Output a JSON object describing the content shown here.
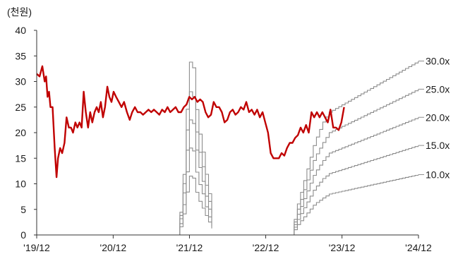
{
  "chart_data": {
    "type": "line",
    "unit_label": "(천원)",
    "ylim": [
      0,
      40
    ],
    "y_ticks": [
      0,
      5,
      10,
      15,
      20,
      25,
      30,
      35,
      40
    ],
    "x_range": [
      "2019-12",
      "2024-12"
    ],
    "x_ticks": [
      {
        "date": "2019-12",
        "label": "'19/12"
      },
      {
        "date": "2020-12",
        "label": "'20/12"
      },
      {
        "date": "2021-12",
        "label": "'21/12"
      },
      {
        "date": "2022-12",
        "label": "'22/12"
      },
      {
        "date": "2023-12",
        "label": "'23/12"
      },
      {
        "date": "2024-12",
        "label": "'24/12"
      }
    ],
    "grid": false,
    "colors": {
      "price": "#c00000",
      "band": "#8c8c8c",
      "axis": "#333333"
    },
    "price": {
      "color": "#c00000",
      "points": [
        [
          "2019-12-01",
          31.5
        ],
        [
          "2019-12-15",
          31
        ],
        [
          "2019-12-28",
          33
        ],
        [
          "2020-01-08",
          30
        ],
        [
          "2020-01-15",
          31
        ],
        [
          "2020-01-22",
          27
        ],
        [
          "2020-01-29",
          28
        ],
        [
          "2020-02-05",
          25
        ],
        [
          "2020-02-15",
          25
        ],
        [
          "2020-02-25",
          17
        ],
        [
          "2020-03-05",
          11.3
        ],
        [
          "2020-03-12",
          15
        ],
        [
          "2020-03-22",
          17
        ],
        [
          "2020-04-01",
          16
        ],
        [
          "2020-04-12",
          18
        ],
        [
          "2020-04-22",
          23
        ],
        [
          "2020-05-03",
          21
        ],
        [
          "2020-05-13",
          21
        ],
        [
          "2020-05-23",
          20
        ],
        [
          "2020-06-03",
          22
        ],
        [
          "2020-06-13",
          21
        ],
        [
          "2020-06-23",
          22
        ],
        [
          "2020-07-03",
          21
        ],
        [
          "2020-07-13",
          28
        ],
        [
          "2020-07-23",
          24
        ],
        [
          "2020-08-03",
          21
        ],
        [
          "2020-08-13",
          24
        ],
        [
          "2020-08-23",
          22
        ],
        [
          "2020-09-03",
          24
        ],
        [
          "2020-09-13",
          25
        ],
        [
          "2020-09-23",
          24
        ],
        [
          "2020-10-03",
          26
        ],
        [
          "2020-10-13",
          23
        ],
        [
          "2020-10-23",
          25
        ],
        [
          "2020-11-03",
          29
        ],
        [
          "2020-11-13",
          27
        ],
        [
          "2020-11-23",
          26
        ],
        [
          "2020-12-03",
          28
        ],
        [
          "2020-12-15",
          27
        ],
        [
          "2020-12-28",
          26
        ],
        [
          "2021-01-10",
          25
        ],
        [
          "2021-01-22",
          26
        ],
        [
          "2021-02-05",
          24
        ],
        [
          "2021-02-18",
          22.5
        ],
        [
          "2021-03-02",
          24
        ],
        [
          "2021-03-15",
          25
        ],
        [
          "2021-03-28",
          24
        ],
        [
          "2021-04-10",
          24
        ],
        [
          "2021-04-23",
          23.5
        ],
        [
          "2021-05-06",
          24
        ],
        [
          "2021-05-19",
          24.5
        ],
        [
          "2021-06-01",
          24
        ],
        [
          "2021-06-14",
          24.5
        ],
        [
          "2021-06-27",
          24
        ],
        [
          "2021-07-10",
          23.5
        ],
        [
          "2021-07-23",
          24.5
        ],
        [
          "2021-08-05",
          24
        ],
        [
          "2021-08-18",
          25
        ],
        [
          "2021-08-31",
          24
        ],
        [
          "2021-09-13",
          24.5
        ],
        [
          "2021-09-26",
          25
        ],
        [
          "2021-10-09",
          24
        ],
        [
          "2021-10-22",
          24
        ],
        [
          "2021-11-04",
          25
        ],
        [
          "2021-11-17",
          25.5
        ],
        [
          "2021-11-30",
          27
        ],
        [
          "2021-12-13",
          26.5
        ],
        [
          "2021-12-26",
          27
        ],
        [
          "2022-01-08",
          26
        ],
        [
          "2022-01-21",
          26.5
        ],
        [
          "2022-02-03",
          26
        ],
        [
          "2022-02-16",
          24
        ],
        [
          "2022-03-01",
          23
        ],
        [
          "2022-03-14",
          23.5
        ],
        [
          "2022-03-27",
          26
        ],
        [
          "2022-04-09",
          25
        ],
        [
          "2022-04-22",
          25
        ],
        [
          "2022-05-05",
          24
        ],
        [
          "2022-05-18",
          22
        ],
        [
          "2022-05-31",
          22.5
        ],
        [
          "2022-06-13",
          24
        ],
        [
          "2022-06-26",
          24.5
        ],
        [
          "2022-07-09",
          23.5
        ],
        [
          "2022-07-22",
          24
        ],
        [
          "2022-08-04",
          25
        ],
        [
          "2022-08-17",
          24.5
        ],
        [
          "2022-08-30",
          26
        ],
        [
          "2022-09-12",
          24
        ],
        [
          "2022-09-25",
          24.5
        ],
        [
          "2022-10-08",
          23.5
        ],
        [
          "2022-10-21",
          24.5
        ],
        [
          "2022-11-03",
          23
        ],
        [
          "2022-11-16",
          24
        ],
        [
          "2022-11-29",
          22
        ],
        [
          "2022-12-12",
          20
        ],
        [
          "2022-12-25",
          16
        ],
        [
          "2023-01-07",
          15
        ],
        [
          "2023-01-20",
          15
        ],
        [
          "2023-02-02",
          15
        ],
        [
          "2023-02-15",
          16
        ],
        [
          "2023-02-28",
          15.5
        ],
        [
          "2023-03-13",
          17
        ],
        [
          "2023-03-26",
          18
        ],
        [
          "2023-04-08",
          18
        ],
        [
          "2023-04-21",
          19
        ],
        [
          "2023-05-04",
          19.5
        ],
        [
          "2023-05-17",
          21
        ],
        [
          "2023-05-30",
          20
        ],
        [
          "2023-06-12",
          21.5
        ],
        [
          "2023-06-25",
          20
        ],
        [
          "2023-07-08",
          24
        ],
        [
          "2023-07-21",
          23
        ],
        [
          "2023-08-03",
          24
        ],
        [
          "2023-08-16",
          23
        ],
        [
          "2023-08-29",
          24
        ],
        [
          "2023-09-11",
          23
        ],
        [
          "2023-09-24",
          22
        ],
        [
          "2023-10-07",
          24.5
        ],
        [
          "2023-10-20",
          21
        ],
        [
          "2023-11-02",
          21
        ],
        [
          "2023-11-15",
          20.5
        ],
        [
          "2023-11-28",
          22
        ],
        [
          "2023-12-11",
          25
        ]
      ]
    },
    "band_step_months": 0.5,
    "band_segments": [
      [
        "2021-10-01",
        "2022-03-31"
      ],
      [
        "2023-04-01",
        "2024-12-01"
      ]
    ],
    "bands": [
      {
        "label": "30.0x",
        "points": [
          [
            "2021-10-01",
            0
          ],
          [
            "2021-10-25",
            7
          ],
          [
            "2021-11-10",
            19
          ],
          [
            "2021-11-25",
            33.8
          ],
          [
            "2021-12-14",
            33.8
          ],
          [
            "2022-01-05",
            22
          ],
          [
            "2022-01-28",
            17
          ],
          [
            "2022-02-18",
            11
          ],
          [
            "2022-03-15",
            5
          ],
          [
            "2022-03-31",
            0
          ],
          [
            "2023-04-01",
            0
          ],
          [
            "2023-05-01",
            6
          ],
          [
            "2023-06-10",
            12
          ],
          [
            "2023-07-20",
            18
          ],
          [
            "2023-08-30",
            22
          ],
          [
            "2023-09-30",
            24
          ],
          [
            "2024-12-01",
            34
          ]
        ]
      },
      {
        "label": "25.0x",
        "points": [
          [
            "2021-10-01",
            0
          ],
          [
            "2021-10-25",
            6
          ],
          [
            "2021-11-10",
            16
          ],
          [
            "2021-11-25",
            28
          ],
          [
            "2021-12-14",
            28
          ],
          [
            "2022-01-05",
            18
          ],
          [
            "2022-01-28",
            14
          ],
          [
            "2022-02-18",
            9
          ],
          [
            "2022-03-15",
            4
          ],
          [
            "2022-03-31",
            0
          ],
          [
            "2023-04-01",
            0
          ],
          [
            "2023-05-01",
            5
          ],
          [
            "2023-06-10",
            10
          ],
          [
            "2023-07-20",
            15
          ],
          [
            "2023-08-30",
            18
          ],
          [
            "2023-09-30",
            20
          ],
          [
            "2024-12-01",
            28.5
          ]
        ]
      },
      {
        "label": "20.0x",
        "points": [
          [
            "2021-10-01",
            0
          ],
          [
            "2021-10-25",
            5
          ],
          [
            "2021-11-10",
            13
          ],
          [
            "2021-11-25",
            22.5
          ],
          [
            "2021-12-14",
            22.5
          ],
          [
            "2022-01-05",
            15
          ],
          [
            "2022-01-28",
            11
          ],
          [
            "2022-02-18",
            7
          ],
          [
            "2022-03-15",
            3
          ],
          [
            "2022-03-31",
            0
          ],
          [
            "2023-04-01",
            0
          ],
          [
            "2023-05-01",
            4
          ],
          [
            "2023-06-10",
            8
          ],
          [
            "2023-07-20",
            12
          ],
          [
            "2023-08-30",
            14.5
          ],
          [
            "2023-09-30",
            16
          ],
          [
            "2024-12-01",
            23
          ]
        ]
      },
      {
        "label": "15.0x",
        "points": [
          [
            "2021-10-01",
            0
          ],
          [
            "2021-10-25",
            3.5
          ],
          [
            "2021-11-10",
            9.5
          ],
          [
            "2021-11-25",
            17
          ],
          [
            "2021-12-14",
            17
          ],
          [
            "2022-01-05",
            11
          ],
          [
            "2022-01-28",
            8.5
          ],
          [
            "2022-02-18",
            5
          ],
          [
            "2022-03-15",
            2
          ],
          [
            "2022-03-31",
            0
          ],
          [
            "2023-04-01",
            0
          ],
          [
            "2023-05-01",
            3
          ],
          [
            "2023-06-10",
            6
          ],
          [
            "2023-07-20",
            9
          ],
          [
            "2023-08-30",
            11
          ],
          [
            "2023-09-30",
            12
          ],
          [
            "2024-12-01",
            17.5
          ]
        ]
      },
      {
        "label": "10.0x",
        "points": [
          [
            "2021-10-01",
            0
          ],
          [
            "2021-10-25",
            2.5
          ],
          [
            "2021-11-10",
            6.5
          ],
          [
            "2021-11-25",
            11.5
          ],
          [
            "2021-12-14",
            11.5
          ],
          [
            "2022-01-05",
            7.5
          ],
          [
            "2022-01-28",
            5.5
          ],
          [
            "2022-02-18",
            3.5
          ],
          [
            "2022-03-15",
            1.5
          ],
          [
            "2022-03-31",
            0
          ],
          [
            "2023-04-01",
            0
          ],
          [
            "2023-05-01",
            2
          ],
          [
            "2023-06-10",
            4
          ],
          [
            "2023-07-20",
            6
          ],
          [
            "2023-08-30",
            7.2
          ],
          [
            "2023-09-30",
            8
          ],
          [
            "2024-12-01",
            11.8
          ]
        ]
      }
    ]
  }
}
